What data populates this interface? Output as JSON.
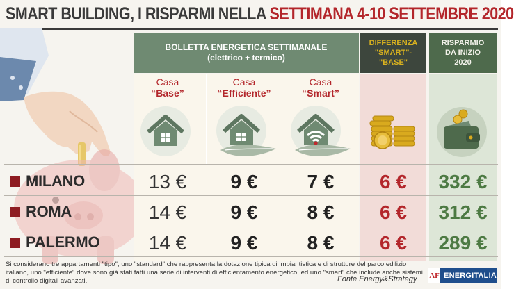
{
  "title": {
    "part1": "SMART BUILDING, I RISPARMI NELLA ",
    "part2": "SETTIMANA 4-10 SETTEMBRE 2020"
  },
  "header": {
    "bolletta_line1": "BOLLETTA ENERGETICA SETTIMANALE",
    "bolletta_line2": "(elettrico + termico)",
    "differenza": [
      "DIFFERENZA",
      "\"SMART\"-",
      "\"BASE\""
    ],
    "risparmio": [
      "RISPARMIO",
      "DA INIZIO",
      "2020"
    ]
  },
  "houses": [
    {
      "line1": "Casa",
      "line2": "“Base”",
      "icon": "house-icon"
    },
    {
      "line1": "Casa",
      "line2": "“Efficiente”",
      "icon": "house-leaf-icon"
    },
    {
      "line1": "Casa",
      "line2": "“Smart”",
      "icon": "house-wifi-icon"
    }
  ],
  "rows": [
    {
      "city": "MILANO",
      "base": "13 €",
      "efficiente": "9 €",
      "smart": "7 €",
      "differenza": "6 €",
      "risparmio": "332 €"
    },
    {
      "city": "ROMA",
      "base": "14 €",
      "efficiente": "9 €",
      "smart": "8 €",
      "differenza": "6 €",
      "risparmio": "312 €"
    },
    {
      "city": "PALERMO",
      "base": "14 €",
      "efficiente": "9 €",
      "smart": "8 €",
      "differenza": "6 €",
      "risparmio": "289 €"
    }
  ],
  "footnote": "Si considerano tre appartamenti \"tipo\", uno \"standard\" che rappresenta la dotazione tipica di impiantistica e di strutture del parco edilizio italiano, uno \"efficiente\" dove sono già stati fatti una serie di interventi di efficientamento energetico, ed uno \"smart\" che include anche sistemi di controllo digitali avanzati.",
  "source": "Fonte Energy&Strategy",
  "logo": {
    "mark": "AF",
    "name": "ENERGITALIA"
  },
  "colors": {
    "title_red": "#b3262b",
    "header_green": "#6f8a72",
    "header_dark": "#3d463d",
    "diff_gold": "#d9b21f",
    "diff_bg": "#f2dcd8",
    "risp_bg": "#dde6d7",
    "value_red": "#b3262b",
    "value_green": "#4d7a43"
  },
  "decor": {
    "hand": "hand-icon",
    "coin": "coin-icon",
    "piggy_bank": "piggy-bank-icon",
    "coins_stack": "coins-stack-icon",
    "wallet": "wallet-icon"
  }
}
